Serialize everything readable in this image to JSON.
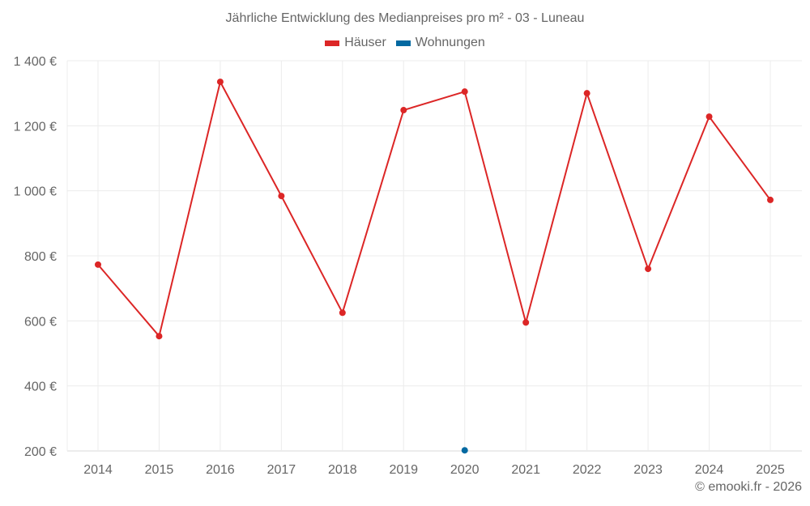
{
  "chart_data": {
    "type": "line",
    "title": "Jährliche Entwicklung des Medianpreises pro m² - 03 - Luneau",
    "xlabel": "",
    "ylabel": "",
    "categories": [
      "2014",
      "2015",
      "2016",
      "2017",
      "2018",
      "2019",
      "2020",
      "2021",
      "2022",
      "2023",
      "2024",
      "2025"
    ],
    "series": [
      {
        "name": "Häuser",
        "color": "#dc2626",
        "values": [
          773,
          553,
          1335,
          984,
          625,
          1248,
          1305,
          595,
          1300,
          760,
          1228,
          972
        ]
      },
      {
        "name": "Wohnungen",
        "color": "#0369a1",
        "values": [
          null,
          null,
          null,
          null,
          null,
          null,
          202,
          null,
          null,
          null,
          null,
          null
        ]
      }
    ],
    "ylim": [
      200,
      1400
    ],
    "yticks": [
      200,
      400,
      600,
      800,
      1000,
      1200,
      1400
    ],
    "ytick_labels": [
      "200 €",
      "400 €",
      "600 €",
      "800 €",
      "1 000 €",
      "1 200 €",
      "1 400 €"
    ],
    "grid": true,
    "legend_position": "top"
  },
  "header": {
    "title": "Jährliche Entwicklung des Medianpreises pro m² - 03 - Luneau"
  },
  "legend": {
    "items": [
      {
        "label": "Häuser",
        "color": "#dc2626"
      },
      {
        "label": "Wohnungen",
        "color": "#0369a1"
      }
    ]
  },
  "footer": {
    "credit": "© emooki.fr - 2026"
  }
}
